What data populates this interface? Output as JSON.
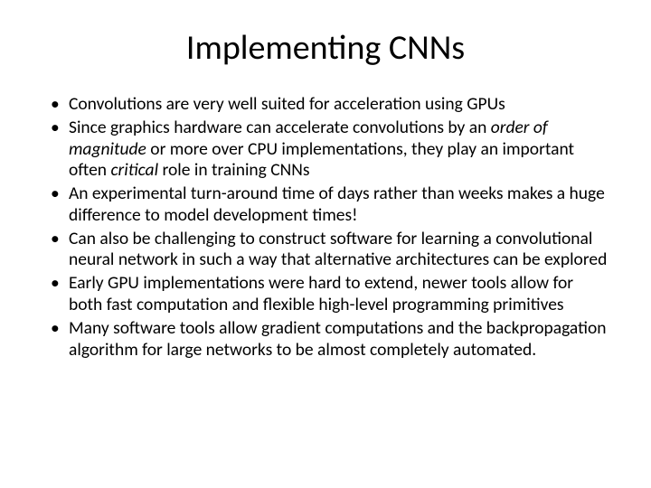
{
  "slide": {
    "title": "Implementing CNNs",
    "title_fontsize": 38,
    "body_fontsize": 19.5,
    "background_color": "#ffffff",
    "text_color": "#000000",
    "bullets": [
      {
        "text": "Convolutions are very well suited for acceleration using GPUs"
      },
      {
        "pre": "Since graphics hardware can accelerate convolutions by an ",
        "em1": "order of magnitude",
        "mid": " or more over CPU implementations, they play an important often ",
        "em2": "critical",
        "post": " role in training CNNs"
      },
      {
        "text": "An experimental turn-around time of days rather than weeks makes a huge difference to model development times!"
      },
      {
        "text": "Can also be challenging to construct software for learning a convolutional neural network in such a way that alternative architectures can be explored"
      },
      {
        "text": "Early GPU implementations were hard to extend, newer tools allow for both fast computation and flexible high-level programming primitives"
      },
      {
        "text": "Many software tools allow gradient computations and the backpropagation algorithm for large networks to be almost completely automated."
      }
    ]
  }
}
